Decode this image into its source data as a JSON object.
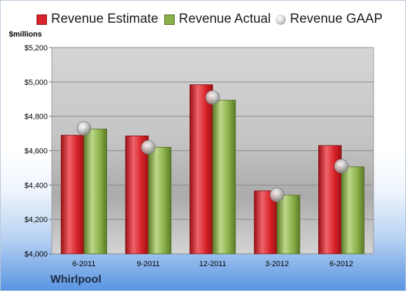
{
  "chart_data": {
    "type": "bar",
    "unit_label": "$millions",
    "company": "Whirlpool",
    "categories": [
      "6-2011",
      "9-2011",
      "12-2011",
      "3-2012",
      "6-2012"
    ],
    "series": [
      {
        "name": "Revenue Estimate",
        "type": "bar",
        "color": "#d8232a",
        "values": [
          4690,
          4686,
          4984,
          4366,
          4630
        ]
      },
      {
        "name": "Revenue Actual",
        "type": "bar",
        "color": "#8ab04a",
        "values": [
          4726,
          4620,
          4894,
          4341,
          4506
        ]
      },
      {
        "name": "Revenue GAAP",
        "type": "marker",
        "color": "#c0c0c0",
        "values": [
          4730,
          4620,
          4910,
          4343,
          4510
        ]
      }
    ],
    "ylim": [
      4000,
      5200
    ],
    "yticks": [
      4000,
      4200,
      4400,
      4600,
      4800,
      5000,
      5200
    ],
    "ytick_labels": [
      "$4,000",
      "$4,200",
      "$4,400",
      "$4,600",
      "$4,800",
      "$5,000",
      "$5,200"
    ],
    "grid": true,
    "legend_position": "top"
  }
}
